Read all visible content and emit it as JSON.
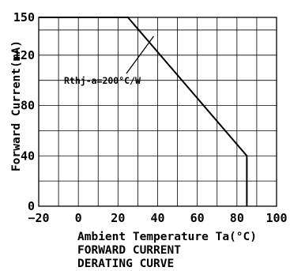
{
  "chart_data": {
    "type": "line",
    "title": [
      "FORWARD CURRENT",
      "DERATING CURVE"
    ],
    "xlabel": "Ambient Temperature Ta(°C)",
    "ylabel": "Forward Current(mA)",
    "xlim": [
      -20,
      100
    ],
    "ylim": [
      0,
      150
    ],
    "x_ticks": [
      -20,
      0,
      20,
      40,
      60,
      80,
      100
    ],
    "y_ticks": [
      0,
      40,
      80,
      120,
      150
    ],
    "grid": true,
    "series": [
      {
        "x": [
          -20,
          25,
          85,
          85
        ],
        "y": [
          150,
          150,
          40,
          0
        ]
      }
    ],
    "annotations": [
      {
        "text": "Rthj-a=200°C/W",
        "x": 38,
        "y": 135
      }
    ]
  }
}
